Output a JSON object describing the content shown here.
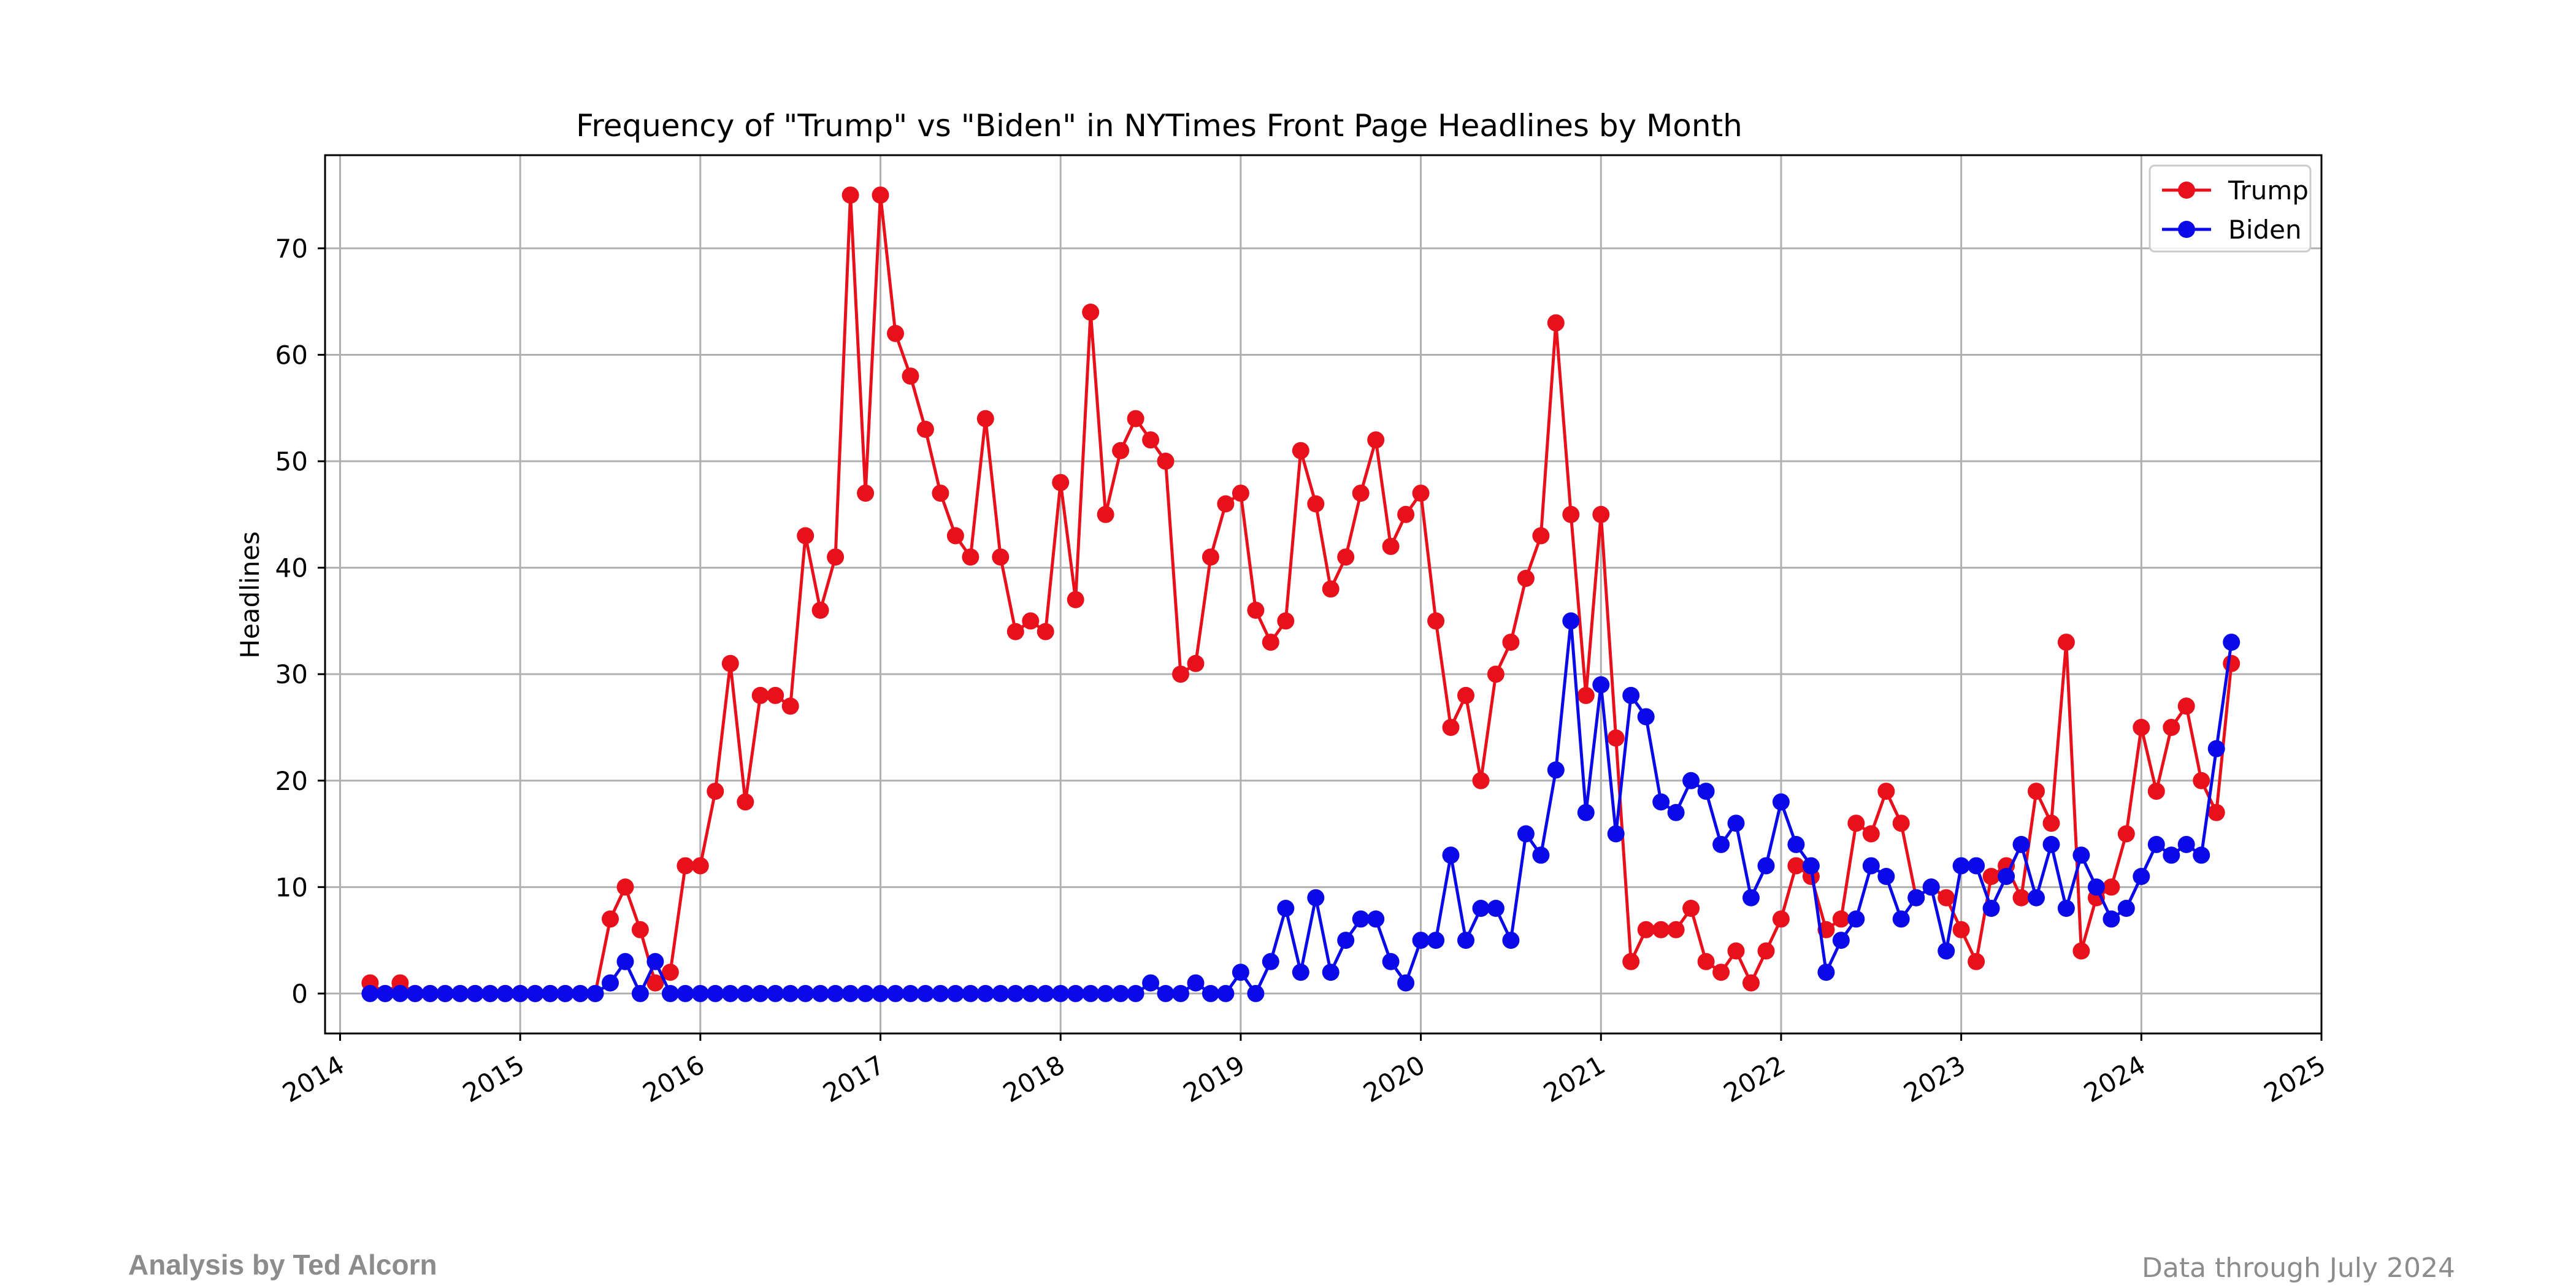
{
  "chart_data": {
    "type": "line",
    "title": "Frequency of \"Trump\" vs \"Biden\" in NYTimes Front Page Headlines by Month",
    "xlabel": "",
    "ylabel": "Headlines",
    "x_ticks": [
      "2014",
      "2015",
      "2016",
      "2017",
      "2018",
      "2019",
      "2020",
      "2021",
      "2022",
      "2023",
      "2024",
      "2025"
    ],
    "y_ticks": [
      0,
      10,
      20,
      30,
      40,
      50,
      60,
      70
    ],
    "xlim": [
      "2013-12",
      "2025-01"
    ],
    "ylim": [
      -3.75,
      78.75
    ],
    "grid": true,
    "legend": "top-right",
    "x_start": "2014-03",
    "x_end": "2024-07",
    "series": [
      {
        "name": "Trump",
        "color": "#e8101a",
        "values": [
          1,
          0,
          1,
          0,
          0,
          0,
          0,
          0,
          0,
          0,
          0,
          0,
          0,
          0,
          0,
          0,
          7,
          10,
          6,
          1,
          2,
          12,
          12,
          19,
          31,
          18,
          28,
          28,
          27,
          43,
          36,
          41,
          75,
          47,
          75,
          62,
          58,
          53,
          47,
          43,
          41,
          54,
          41,
          34,
          35,
          34,
          48,
          37,
          64,
          45,
          51,
          54,
          52,
          50,
          30,
          31,
          41,
          46,
          47,
          36,
          33,
          35,
          51,
          46,
          38,
          41,
          47,
          52,
          42,
          45,
          47,
          35,
          25,
          28,
          20,
          30,
          33,
          39,
          43,
          63,
          45,
          28,
          45,
          24,
          3,
          6,
          6,
          6,
          8,
          3,
          2,
          4,
          1,
          4,
          7,
          12,
          11,
          6,
          7,
          16,
          15,
          19,
          16,
          9,
          10,
          9,
          6,
          3,
          11,
          12,
          9,
          19,
          16,
          33,
          4,
          9,
          10,
          15,
          25,
          19,
          25,
          27,
          20,
          17,
          31
        ]
      },
      {
        "name": "Biden",
        "color": "#0a0ae8",
        "values": [
          0,
          0,
          0,
          0,
          0,
          0,
          0,
          0,
          0,
          0,
          0,
          0,
          0,
          0,
          0,
          0,
          1,
          3,
          0,
          3,
          0,
          0,
          0,
          0,
          0,
          0,
          0,
          0,
          0,
          0,
          0,
          0,
          0,
          0,
          0,
          0,
          0,
          0,
          0,
          0,
          0,
          0,
          0,
          0,
          0,
          0,
          0,
          0,
          0,
          0,
          0,
          0,
          1,
          0,
          0,
          1,
          0,
          0,
          2,
          0,
          3,
          8,
          2,
          9,
          2,
          5,
          7,
          7,
          3,
          1,
          5,
          5,
          13,
          5,
          8,
          8,
          5,
          15,
          13,
          21,
          35,
          17,
          29,
          15,
          28,
          26,
          18,
          17,
          20,
          19,
          14,
          16,
          9,
          12,
          18,
          14,
          12,
          2,
          5,
          7,
          12,
          11,
          7,
          9,
          10,
          4,
          12,
          12,
          8,
          11,
          14,
          9,
          14,
          8,
          13,
          10,
          7,
          8,
          11,
          14,
          13,
          14,
          13,
          23,
          33
        ]
      }
    ]
  },
  "footer": {
    "credit": "Analysis by Ted Alcorn",
    "note": "Data through July 2024"
  }
}
